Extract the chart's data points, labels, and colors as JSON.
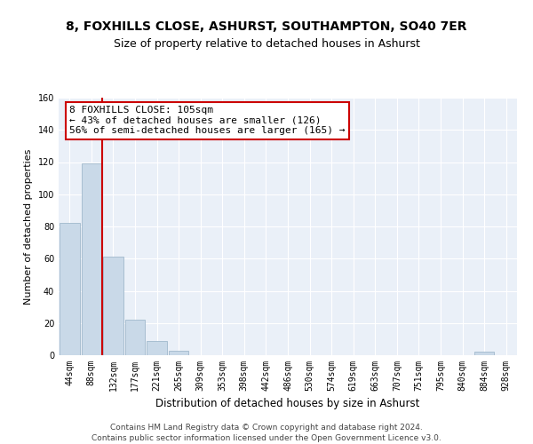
{
  "title1": "8, FOXHILLS CLOSE, ASHURST, SOUTHAMPTON, SO40 7ER",
  "title2": "Size of property relative to detached houses in Ashurst",
  "xlabel": "Distribution of detached houses by size in Ashurst",
  "ylabel": "Number of detached properties",
  "bar_labels": [
    "44sqm",
    "88sqm",
    "132sqm",
    "177sqm",
    "221sqm",
    "265sqm",
    "309sqm",
    "353sqm",
    "398sqm",
    "442sqm",
    "486sqm",
    "530sqm",
    "574sqm",
    "619sqm",
    "663sqm",
    "707sqm",
    "751sqm",
    "795sqm",
    "840sqm",
    "884sqm",
    "928sqm"
  ],
  "bar_values": [
    82,
    119,
    61,
    22,
    9,
    3,
    0,
    0,
    0,
    0,
    0,
    0,
    0,
    0,
    0,
    0,
    0,
    0,
    0,
    2,
    0
  ],
  "bar_color": "#c9d9e8",
  "bar_edge_color": "#a0b8cc",
  "vline_x_index": 1,
  "vline_color": "#cc0000",
  "annotation_text": "8 FOXHILLS CLOSE: 105sqm\n← 43% of detached houses are smaller (126)\n56% of semi-detached houses are larger (165) →",
  "annotation_box_color": "#ffffff",
  "annotation_box_edge": "#cc0000",
  "ylim": [
    0,
    160
  ],
  "yticks": [
    0,
    20,
    40,
    60,
    80,
    100,
    120,
    140,
    160
  ],
  "background_color": "#eaf0f8",
  "grid_color": "#ffffff",
  "footer_text": "Contains HM Land Registry data © Crown copyright and database right 2024.\nContains public sector information licensed under the Open Government Licence v3.0.",
  "title1_fontsize": 10,
  "title2_fontsize": 9,
  "xlabel_fontsize": 8.5,
  "ylabel_fontsize": 8,
  "tick_fontsize": 7,
  "annotation_fontsize": 8,
  "footer_fontsize": 6.5
}
